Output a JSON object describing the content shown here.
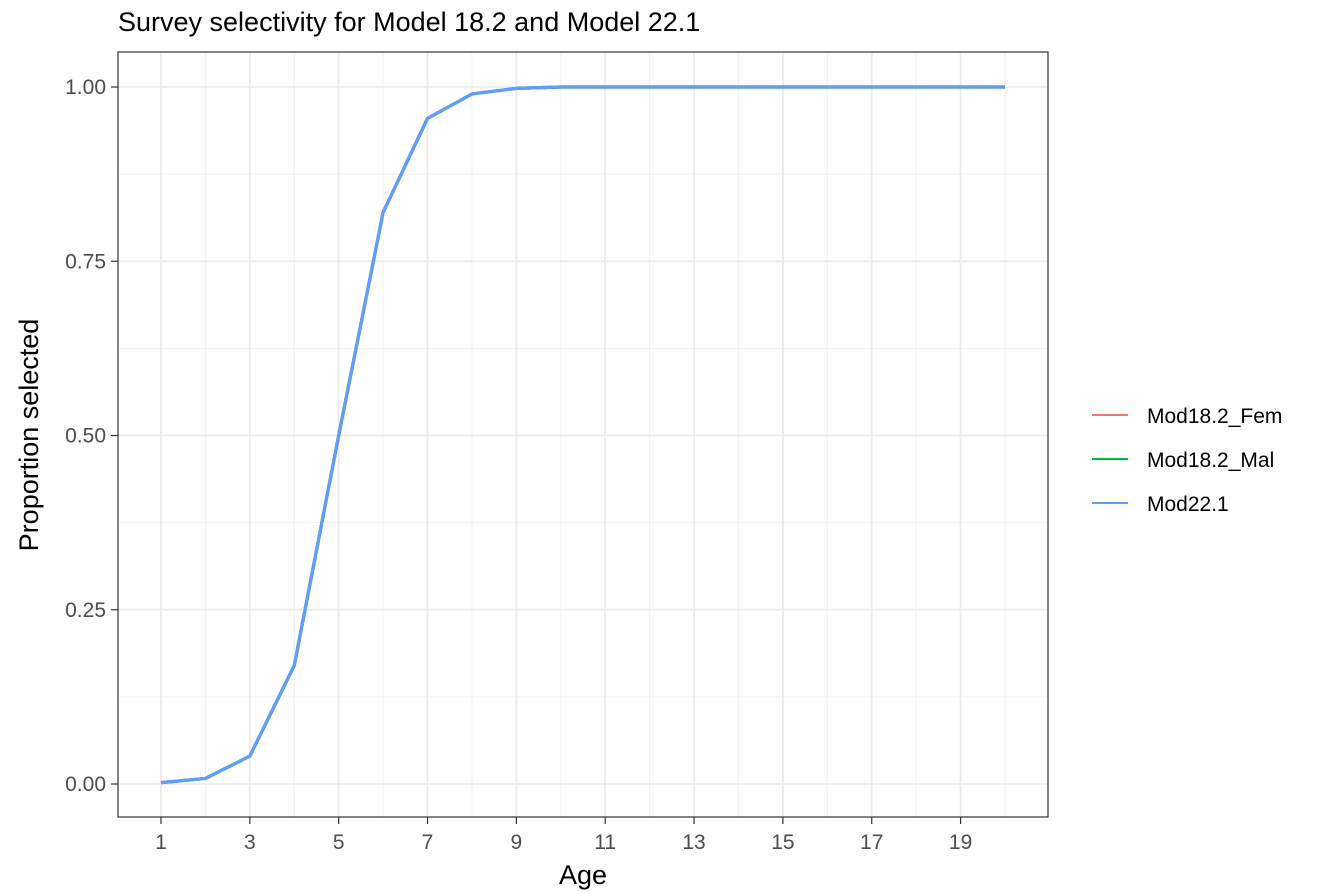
{
  "chart_data": {
    "type": "line",
    "title": "Survey selectivity for Model 18.2 and Model 22.1",
    "xlabel": "Age",
    "ylabel": "Proportion selected",
    "xlim": [
      1,
      20
    ],
    "ylim": [
      0,
      1
    ],
    "x_ticks": [
      1,
      3,
      5,
      7,
      9,
      11,
      13,
      15,
      17,
      19
    ],
    "y_ticks": [
      0,
      0.25,
      0.5,
      0.75,
      1
    ],
    "x_tick_labels": [
      "1",
      "3",
      "5",
      "7",
      "9",
      "11",
      "13",
      "15",
      "17",
      "19"
    ],
    "y_tick_labels": [
      "0.00",
      "0.25",
      "0.50",
      "0.75",
      "1.00"
    ],
    "grid": true,
    "legend_position": "right",
    "x": [
      1,
      2,
      3,
      4,
      5,
      6,
      7,
      8,
      9,
      10,
      11,
      12,
      13,
      14,
      15,
      16,
      17,
      18,
      19,
      20
    ],
    "series": [
      {
        "name": "Mod18.2_Fem",
        "color": "#F8766D",
        "values": [
          0.002,
          0.008,
          0.04,
          0.17,
          0.5,
          0.82,
          0.955,
          0.99,
          0.998,
          1,
          1,
          1,
          1,
          1,
          1,
          1,
          1,
          1,
          1,
          1
        ]
      },
      {
        "name": "Mod18.2_Mal",
        "color": "#00BA38",
        "values": [
          0.002,
          0.008,
          0.04,
          0.17,
          0.5,
          0.82,
          0.955,
          0.99,
          0.998,
          1,
          1,
          1,
          1,
          1,
          1,
          1,
          1,
          1,
          1,
          1
        ]
      },
      {
        "name": "Mod22.1",
        "color": "#619CFF",
        "values": [
          0.002,
          0.008,
          0.04,
          0.17,
          0.5,
          0.82,
          0.955,
          0.99,
          0.998,
          1,
          1,
          1,
          1,
          1,
          1,
          1,
          1,
          1,
          1,
          1
        ]
      }
    ]
  }
}
